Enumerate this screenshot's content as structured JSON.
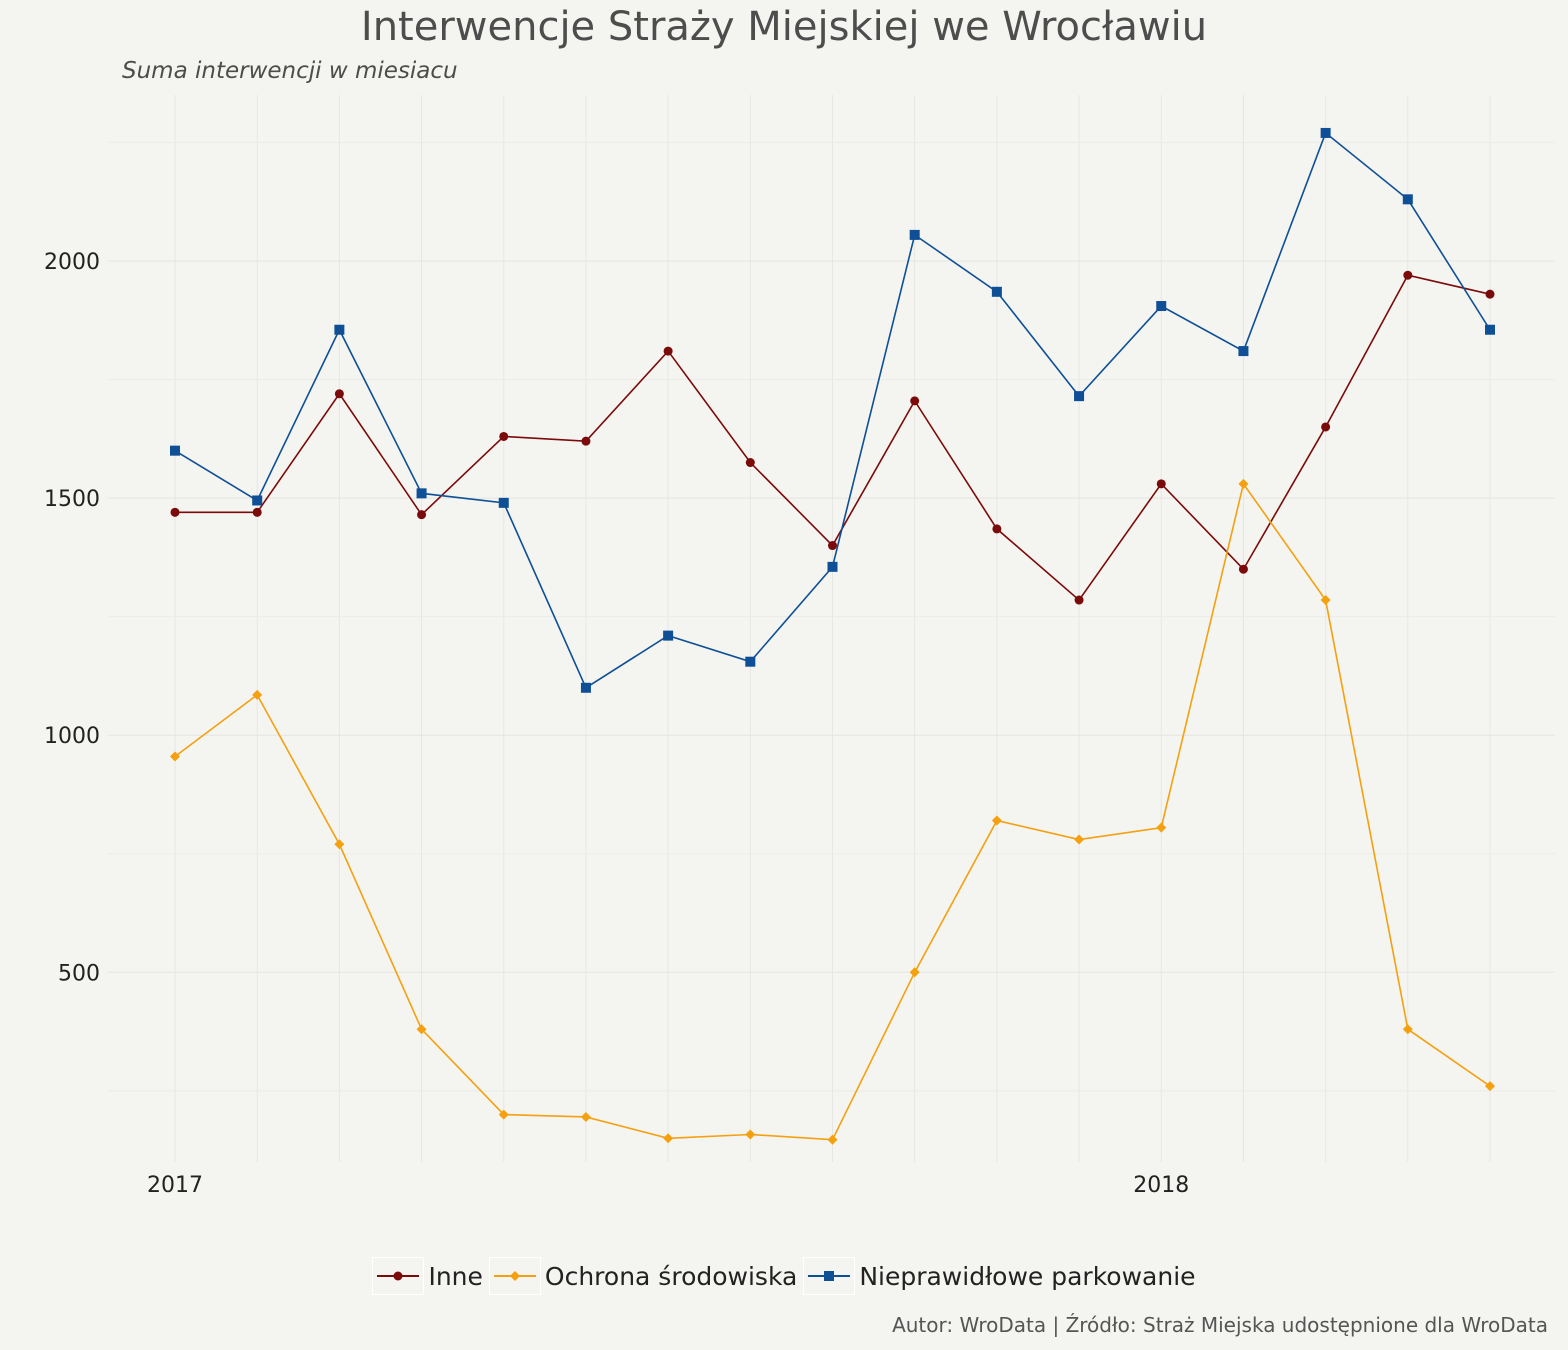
{
  "chart_data": {
    "type": "line",
    "title": "Interwencje Straży Miejskiej we Wrocławiu",
    "subtitle": "Suma interwencji w miesiacu",
    "caption": "Autor: WroData | Źródło: Straż Miejska udostępnione dla WroData",
    "xlabel": "",
    "ylabel": "",
    "x": [
      "2017-01",
      "2017-02",
      "2017-03",
      "2017-04",
      "2017-05",
      "2017-06",
      "2017-07",
      "2017-08",
      "2017-09",
      "2017-10",
      "2017-11",
      "2017-12",
      "2018-01",
      "2018-02",
      "2018-03",
      "2018-04",
      "2018-05"
    ],
    "x_tick_labels": [
      {
        "x": "2017-01",
        "label": "2017"
      },
      {
        "x": "2018-01",
        "label": "2018"
      }
    ],
    "y_ticks": [
      500,
      1000,
      1500,
      2000
    ],
    "ylim": [
      100,
      2350
    ],
    "grid": true,
    "legend_position": "bottom",
    "series": [
      {
        "name": "Inne",
        "color": "#7b0a0a",
        "marker": "circle",
        "values": [
          1470,
          1470,
          1720,
          1465,
          1630,
          1620,
          1810,
          1575,
          1400,
          1705,
          1435,
          1285,
          1530,
          1350,
          1650,
          1970,
          1930
        ]
      },
      {
        "name": "Ochrona środowiska",
        "color": "#f5a00f",
        "marker": "diamond",
        "values": [
          955,
          1085,
          770,
          380,
          200,
          195,
          150,
          158,
          147,
          500,
          820,
          780,
          805,
          1530,
          1285,
          380,
          260
        ]
      },
      {
        "name": "Nieprawidłowe parkowanie",
        "color": "#0e4f96",
        "marker": "square",
        "values": [
          1600,
          1495,
          1855,
          1510,
          1490,
          1100,
          1210,
          1155,
          1355,
          2055,
          1935,
          1715,
          1905,
          1810,
          2270,
          2130,
          1855
        ]
      }
    ]
  }
}
